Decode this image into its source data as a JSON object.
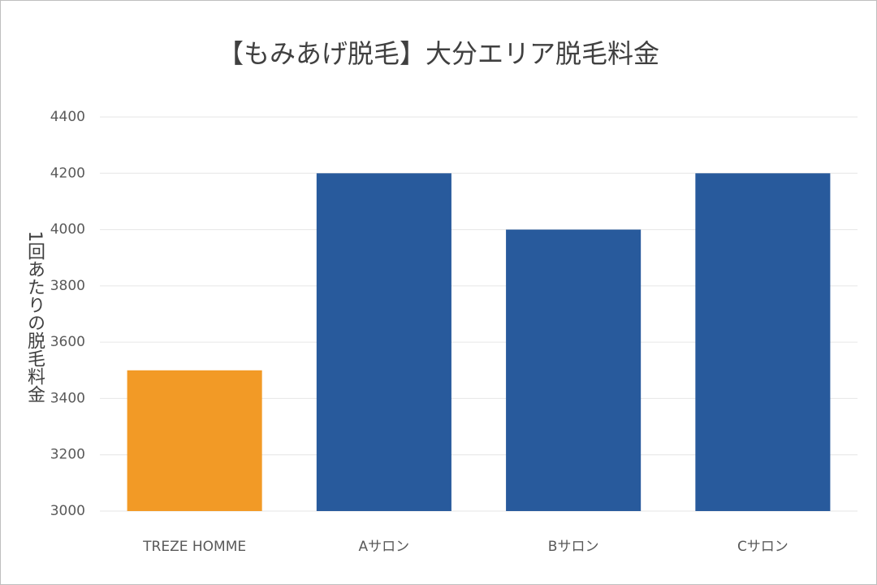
{
  "chart_data": {
    "type": "bar",
    "title": "【もみあげ脱毛】大分エリア脱毛料金",
    "y_label": "1回あたりの脱毛料金",
    "categories": [
      "TREZE HOMME",
      "Aサロン",
      "Bサロン",
      "Cサロン"
    ],
    "values": [
      3500,
      4200,
      4000,
      4200
    ],
    "colors": [
      "#f29a26",
      "#285a9c",
      "#285a9c",
      "#285a9c"
    ],
    "ylim": [
      3000,
      4400
    ],
    "yticks": [
      3000,
      3200,
      3400,
      3600,
      3800,
      4000,
      4200,
      4400
    ],
    "grid": true
  }
}
